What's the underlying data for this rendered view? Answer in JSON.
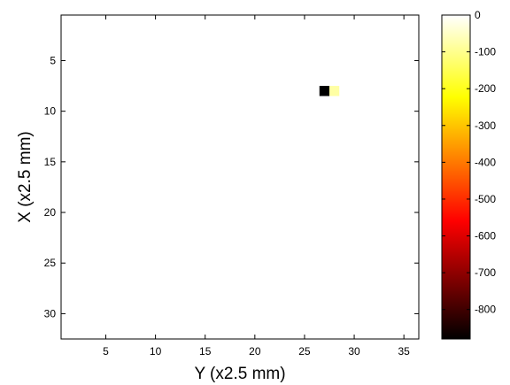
{
  "chart_data": {
    "type": "heatmap",
    "title": "",
    "xlabel": "Y (x2.5 mm)",
    "ylabel": "X (x2.5 mm)",
    "xlim": [
      0.5,
      36.5
    ],
    "ylim": [
      0.5,
      32.5
    ],
    "y_reversed": true,
    "xticks": [
      5,
      10,
      15,
      20,
      25,
      30,
      35
    ],
    "yticks": [
      5,
      10,
      15,
      20,
      25,
      30
    ],
    "background_value": 0,
    "cells": [
      {
        "x": 27,
        "y": 8,
        "value": -880
      },
      {
        "x": 28,
        "y": 8,
        "value": -80
      }
    ],
    "colorbar": {
      "colormap": "hot",
      "range": [
        -880,
        0
      ],
      "ticks": [
        0,
        -100,
        -200,
        -300,
        -400,
        -500,
        -600,
        -700,
        -800
      ]
    }
  }
}
